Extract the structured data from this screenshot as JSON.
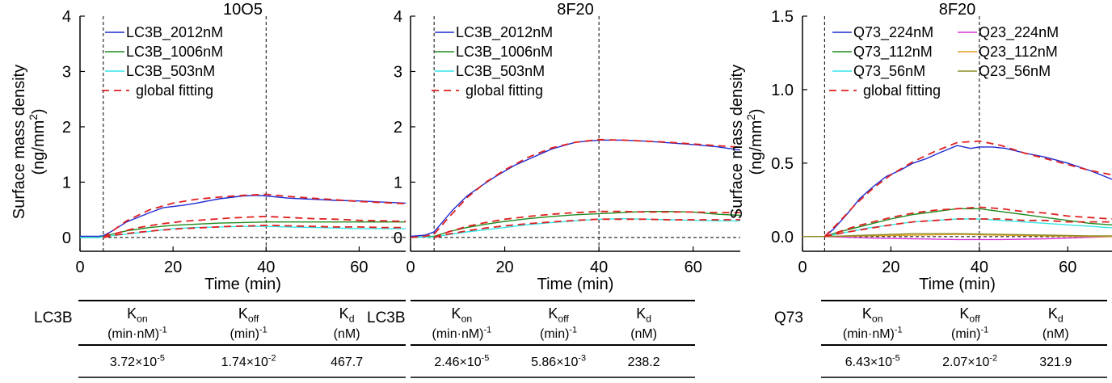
{
  "colors": {
    "blue": "#1f2ad1",
    "green": "#1e8a1e",
    "cyan": "#33e6e6",
    "magenta": "#d633d6",
    "orange": "#e0a020",
    "olive": "#8c8c2a",
    "fit_red": "#e02020"
  },
  "chart_data": [
    {
      "type": "line",
      "title": "10O5",
      "xlabel": "Time (min)",
      "ylabel": "Surface mass density",
      "ylabel_unit_prefix": "(ng/mm",
      "ylabel_unit_sup": "2",
      "ylabel_unit_suffix": ")",
      "xlim": [
        0,
        70
      ],
      "ylim": [
        -0.25,
        4
      ],
      "xticks": [
        0,
        20,
        40,
        60
      ],
      "yticks": [
        0,
        1,
        2,
        3,
        4
      ],
      "ytick_labels": [
        "0",
        "1",
        "2",
        "3",
        "4"
      ],
      "vlines": [
        5,
        40
      ],
      "hline": 0,
      "legend": "top-left",
      "series": [
        {
          "name": "LC3B_2012nM",
          "color": "blue",
          "dash": false,
          "x": [
            0,
            4,
            5,
            7,
            10,
            15,
            18,
            22,
            25,
            30,
            35,
            38,
            40,
            45,
            50,
            55,
            60,
            65,
            70
          ],
          "y": [
            0.02,
            0.02,
            0.03,
            0.12,
            0.28,
            0.45,
            0.54,
            0.58,
            0.62,
            0.7,
            0.75,
            0.76,
            0.75,
            0.71,
            0.69,
            0.67,
            0.66,
            0.64,
            0.62
          ]
        },
        {
          "name": "LC3B_1006nM",
          "color": "green",
          "dash": false,
          "x": [
            0,
            4,
            5,
            7,
            10,
            15,
            20,
            25,
            30,
            35,
            40,
            45,
            50,
            55,
            60,
            65,
            70
          ],
          "y": [
            0.0,
            0.0,
            0.02,
            0.06,
            0.12,
            0.18,
            0.22,
            0.24,
            0.26,
            0.27,
            0.28,
            0.28,
            0.28,
            0.28,
            0.28,
            0.28,
            0.28
          ]
        },
        {
          "name": "LC3B_503nM",
          "color": "cyan",
          "dash": false,
          "x": [
            0,
            4,
            5,
            8,
            12,
            16,
            20,
            25,
            30,
            35,
            40,
            45,
            50,
            55,
            60,
            65,
            70
          ],
          "y": [
            0.0,
            0.0,
            0.01,
            0.04,
            0.08,
            0.12,
            0.16,
            0.18,
            0.19,
            0.2,
            0.2,
            0.19,
            0.18,
            0.17,
            0.16,
            0.16,
            0.16
          ]
        },
        {
          "name": "global fitting",
          "color": "fit_red",
          "dash": true,
          "x": [
            5,
            7,
            10,
            15,
            20,
            25,
            30,
            35,
            40,
            45,
            50,
            55,
            60,
            65,
            70
          ],
          "y": [
            0.0,
            0.12,
            0.3,
            0.5,
            0.62,
            0.69,
            0.73,
            0.76,
            0.78,
            0.74,
            0.71,
            0.68,
            0.65,
            0.63,
            0.61
          ]
        },
        {
          "name": "",
          "color": "fit_red",
          "dash": true,
          "x": [
            5,
            8,
            12,
            17,
            22,
            27,
            32,
            37,
            40,
            45,
            50,
            55,
            60,
            65,
            70
          ],
          "y": [
            0.0,
            0.08,
            0.17,
            0.24,
            0.29,
            0.32,
            0.35,
            0.37,
            0.38,
            0.36,
            0.34,
            0.33,
            0.31,
            0.3,
            0.29
          ]
        },
        {
          "name": "",
          "color": "fit_red",
          "dash": true,
          "x": [
            5,
            8,
            12,
            17,
            22,
            27,
            32,
            37,
            40,
            45,
            50,
            55,
            60,
            65,
            70
          ],
          "y": [
            0.0,
            0.05,
            0.09,
            0.13,
            0.16,
            0.18,
            0.2,
            0.21,
            0.22,
            0.21,
            0.2,
            0.19,
            0.19,
            0.18,
            0.18
          ]
        }
      ],
      "table": {
        "row_label": "LC3B",
        "headers": [
          {
            "main": "K",
            "sub": "on",
            "unit": "(min·nM)",
            "unit_sup": "-1"
          },
          {
            "main": "K",
            "sub": "off",
            "unit": "(min)",
            "unit_sup": "-1"
          },
          {
            "main": "K",
            "sub": "d",
            "unit": "(nM)",
            "unit_sup": ""
          }
        ],
        "values": [
          {
            "mant": "3.72×10",
            "exp": "-5"
          },
          {
            "mant": "1.74×10",
            "exp": "-2"
          },
          {
            "mant": "467.7",
            "exp": ""
          }
        ]
      }
    },
    {
      "type": "line",
      "title": "8F20",
      "xlabel": "Time (min)",
      "ylabel": "",
      "xlim": [
        0,
        70
      ],
      "ylim": [
        -0.25,
        4
      ],
      "xticks": [
        0,
        20,
        40,
        60
      ],
      "yticks": [
        0,
        1,
        2,
        3,
        4
      ],
      "ytick_labels": [
        "0",
        "1",
        "2",
        "3",
        "4"
      ],
      "vlines": [
        5,
        40
      ],
      "hline": 0,
      "legend": "top-left",
      "series": [
        {
          "name": "LC3B_2012nM",
          "color": "blue",
          "dash": false,
          "x": [
            0,
            3,
            5,
            7,
            9,
            12,
            15,
            18,
            22,
            26,
            30,
            35,
            40,
            45,
            50,
            55,
            60,
            65,
            70
          ],
          "y": [
            0.02,
            0.04,
            0.1,
            0.3,
            0.5,
            0.75,
            0.93,
            1.1,
            1.3,
            1.45,
            1.6,
            1.72,
            1.76,
            1.76,
            1.74,
            1.71,
            1.68,
            1.64,
            1.58
          ]
        },
        {
          "name": "LC3B_1006nM",
          "color": "green",
          "dash": false,
          "x": [
            0,
            5,
            8,
            12,
            16,
            20,
            25,
            30,
            35,
            40,
            45,
            50,
            55,
            60,
            65,
            70
          ],
          "y": [
            0.0,
            0.02,
            0.1,
            0.18,
            0.24,
            0.29,
            0.34,
            0.38,
            0.41,
            0.43,
            0.45,
            0.47,
            0.47,
            0.46,
            0.42,
            0.4
          ]
        },
        {
          "name": "LC3B_503nM",
          "color": "cyan",
          "dash": false,
          "x": [
            0,
            5,
            8,
            12,
            16,
            20,
            25,
            30,
            35,
            40,
            45,
            50,
            55,
            60,
            65,
            70
          ],
          "y": [
            0.0,
            0.01,
            0.05,
            0.1,
            0.14,
            0.18,
            0.23,
            0.27,
            0.3,
            0.33,
            0.34,
            0.33,
            0.32,
            0.31,
            0.3,
            0.3
          ]
        },
        {
          "name": "global fitting",
          "color": "fit_red",
          "dash": true,
          "x": [
            0,
            3,
            5,
            8,
            12,
            16,
            20,
            25,
            30,
            35,
            40,
            45,
            50,
            55,
            60,
            65,
            70
          ],
          "y": [
            0.0,
            0.02,
            0.06,
            0.35,
            0.72,
            1.0,
            1.22,
            1.45,
            1.62,
            1.72,
            1.77,
            1.76,
            1.74,
            1.72,
            1.69,
            1.66,
            1.63
          ]
        },
        {
          "name": "",
          "color": "fit_red",
          "dash": true,
          "x": [
            5,
            8,
            12,
            16,
            20,
            25,
            30,
            35,
            40,
            45,
            50,
            55,
            60,
            65,
            70
          ],
          "y": [
            0.0,
            0.1,
            0.2,
            0.27,
            0.33,
            0.38,
            0.42,
            0.45,
            0.47,
            0.47,
            0.46,
            0.46,
            0.46,
            0.45,
            0.45
          ]
        },
        {
          "name": "",
          "color": "fit_red",
          "dash": true,
          "x": [
            5,
            8,
            12,
            16,
            20,
            25,
            30,
            35,
            40,
            45,
            50,
            55,
            60,
            65,
            70
          ],
          "y": [
            0.0,
            0.06,
            0.12,
            0.17,
            0.21,
            0.25,
            0.28,
            0.31,
            0.33,
            0.33,
            0.33,
            0.32,
            0.32,
            0.32,
            0.32
          ]
        }
      ],
      "table": {
        "row_label": "LC3B",
        "headers": [
          {
            "main": "K",
            "sub": "on",
            "unit": "(min·nM)",
            "unit_sup": "-1"
          },
          {
            "main": "K",
            "sub": "off",
            "unit": "(min)",
            "unit_sup": "-1"
          },
          {
            "main": "K",
            "sub": "d",
            "unit": "(nM)",
            "unit_sup": ""
          }
        ],
        "values": [
          {
            "mant": "2.46×10",
            "exp": "-5"
          },
          {
            "mant": "5.86×10",
            "exp": "-3"
          },
          {
            "mant": "238.2",
            "exp": ""
          }
        ]
      }
    },
    {
      "type": "line",
      "title": "8F20",
      "xlabel": "Time (min)",
      "ylabel": "Surface mass density",
      "ylabel_unit_prefix": "(ng/mm",
      "ylabel_unit_sup": "2",
      "ylabel_unit_suffix": ")",
      "xlim": [
        0,
        70
      ],
      "ylim": [
        -0.1,
        1.5
      ],
      "xticks": [
        0,
        20,
        40,
        60
      ],
      "yticks": [
        0,
        0.5,
        1.0,
        1.5
      ],
      "ytick_labels": [
        "0.0",
        "0.5",
        "1.0",
        "1.5"
      ],
      "vlines": [
        5,
        40
      ],
      "hline": 0,
      "legend": "top-left",
      "series": [
        {
          "name": "Q73_224nM",
          "color": "blue",
          "dash": false,
          "x": [
            0,
            5,
            7,
            10,
            13,
            16,
            19,
            22,
            25,
            28,
            31,
            35,
            38,
            40,
            43,
            46,
            50,
            55,
            60,
            65,
            70
          ],
          "y": [
            0.0,
            0.0,
            0.05,
            0.15,
            0.26,
            0.34,
            0.41,
            0.45,
            0.5,
            0.53,
            0.57,
            0.62,
            0.6,
            0.61,
            0.61,
            0.6,
            0.57,
            0.54,
            0.5,
            0.45,
            0.39
          ]
        },
        {
          "name": "Q73_112nM",
          "color": "green",
          "dash": false,
          "x": [
            0,
            5,
            8,
            12,
            16,
            20,
            25,
            30,
            35,
            40,
            45,
            50,
            55,
            60,
            65,
            70
          ],
          "y": [
            0.0,
            0.0,
            0.03,
            0.06,
            0.09,
            0.12,
            0.15,
            0.17,
            0.19,
            0.19,
            0.17,
            0.15,
            0.13,
            0.11,
            0.09,
            0.08
          ]
        },
        {
          "name": "Q73_56nM",
          "color": "cyan",
          "dash": false,
          "x": [
            0,
            5,
            10,
            15,
            20,
            25,
            30,
            35,
            40,
            45,
            50,
            55,
            60,
            65,
            70
          ],
          "y": [
            0.0,
            0.0,
            0.03,
            0.06,
            0.08,
            0.1,
            0.11,
            0.12,
            0.12,
            0.11,
            0.1,
            0.09,
            0.08,
            0.07,
            0.06
          ]
        },
        {
          "name": "Q23_224nM",
          "color": "magenta",
          "dash": false,
          "x": [
            0,
            5,
            15,
            25,
            35,
            45,
            55,
            65,
            70
          ],
          "y": [
            0.0,
            0.0,
            -0.01,
            -0.015,
            -0.02,
            -0.02,
            -0.015,
            -0.005,
            0.0
          ]
        },
        {
          "name": "Q23_112nM",
          "color": "orange",
          "dash": false,
          "x": [
            0,
            5,
            15,
            25,
            35,
            45,
            55,
            65,
            70
          ],
          "y": [
            0.0,
            0.0,
            0.005,
            0.01,
            0.015,
            0.01,
            0.005,
            0.0,
            0.0
          ]
        },
        {
          "name": "Q23_56nM",
          "color": "olive",
          "dash": false,
          "x": [
            0,
            5,
            15,
            25,
            35,
            45,
            55,
            65,
            70
          ],
          "y": [
            0.0,
            0.0,
            0.01,
            0.02,
            0.02,
            0.015,
            0.01,
            0.005,
            0.005
          ]
        },
        {
          "name": "global fitting",
          "color": "fit_red",
          "dash": true,
          "x": [
            5,
            8,
            12,
            16,
            20,
            25,
            30,
            35,
            40,
            45,
            50,
            55,
            60,
            65,
            70
          ],
          "y": [
            0.0,
            0.09,
            0.22,
            0.33,
            0.42,
            0.51,
            0.58,
            0.64,
            0.65,
            0.62,
            0.57,
            0.53,
            0.49,
            0.45,
            0.42
          ]
        },
        {
          "name": "",
          "color": "fit_red",
          "dash": true,
          "x": [
            5,
            8,
            12,
            16,
            20,
            25,
            30,
            35,
            40,
            45,
            50,
            55,
            60,
            65,
            70
          ],
          "y": [
            0.0,
            0.03,
            0.07,
            0.1,
            0.13,
            0.16,
            0.18,
            0.19,
            0.2,
            0.19,
            0.17,
            0.16,
            0.14,
            0.13,
            0.12
          ]
        },
        {
          "name": "",
          "color": "fit_red",
          "dash": true,
          "x": [
            5,
            8,
            12,
            16,
            20,
            25,
            30,
            35,
            40,
            45,
            50,
            55,
            60,
            65,
            70
          ],
          "y": [
            0.0,
            0.02,
            0.04,
            0.06,
            0.08,
            0.1,
            0.11,
            0.12,
            0.12,
            0.12,
            0.11,
            0.11,
            0.1,
            0.1,
            0.1
          ]
        }
      ],
      "table": {
        "row_label": "Q73",
        "headers": [
          {
            "main": "K",
            "sub": "on",
            "unit": "(min·nM)",
            "unit_sup": "-1"
          },
          {
            "main": "K",
            "sub": "off",
            "unit": "(min)",
            "unit_sup": "-1"
          },
          {
            "main": "K",
            "sub": "d",
            "unit": "(nM)",
            "unit_sup": ""
          }
        ],
        "values": [
          {
            "mant": "6.43×10",
            "exp": "-5"
          },
          {
            "mant": "2.07×10",
            "exp": "-2"
          },
          {
            "mant": "321.9",
            "exp": ""
          }
        ]
      }
    }
  ]
}
